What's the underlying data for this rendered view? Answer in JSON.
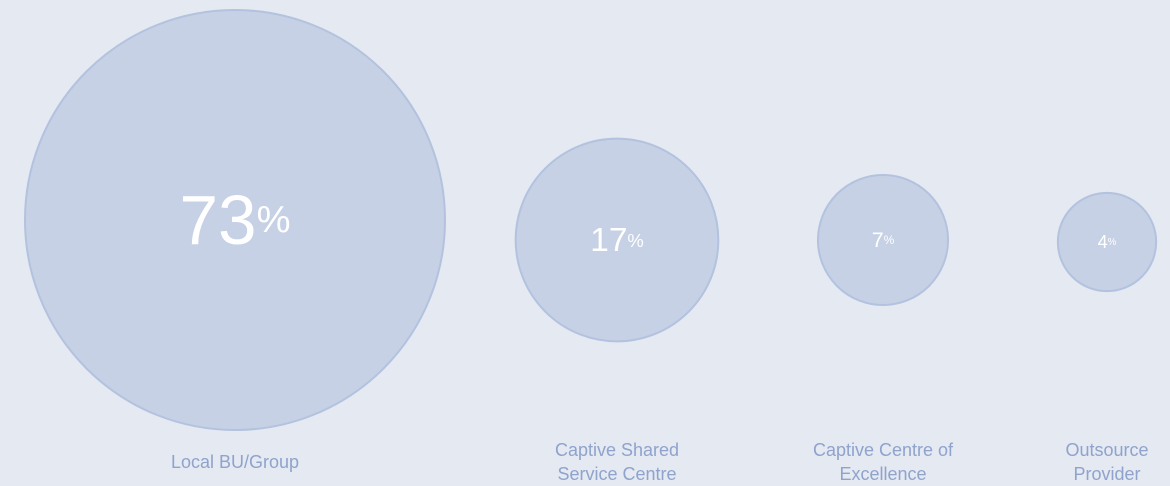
{
  "chart_data": {
    "type": "bubble",
    "categories": [
      "Local BU/Group",
      "Captive Shared Service Centre",
      "Captive Centre of Excellence",
      "Outsource Provider"
    ],
    "values": [
      73,
      17,
      7,
      4
    ],
    "value_labels": [
      "73%",
      "17%",
      "7%",
      "4%"
    ],
    "color": "#c6d1e5"
  }
}
